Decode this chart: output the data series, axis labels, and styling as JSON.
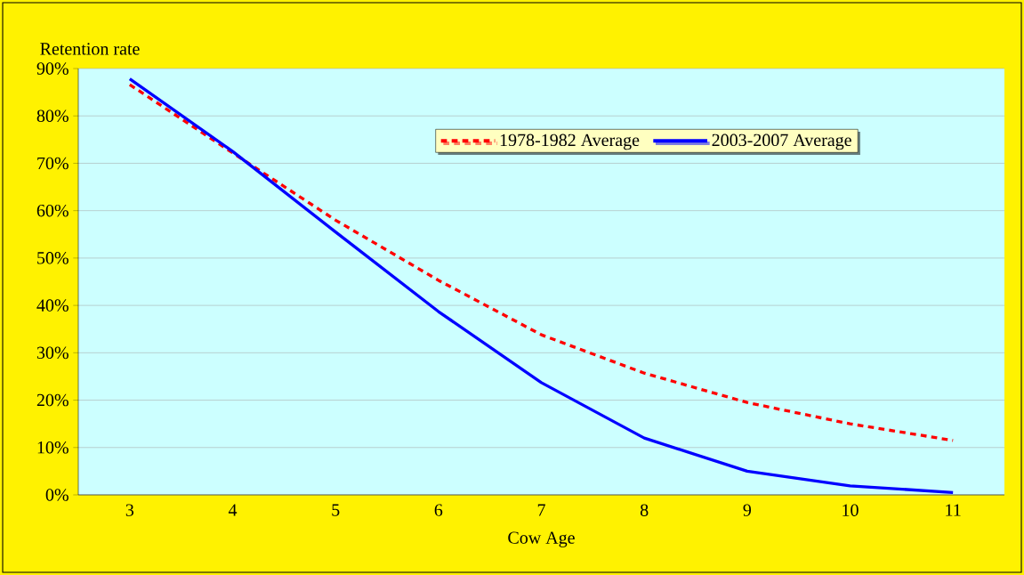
{
  "chart_data": {
    "type": "line",
    "xlabel": "Cow Age",
    "ylabel": "Retention rate",
    "categories": [
      "3",
      "4",
      "5",
      "6",
      "7",
      "8",
      "9",
      "10",
      "11"
    ],
    "series": [
      {
        "name": "1978-1982 Average",
        "color": "#ff0000",
        "line_style": "dashed",
        "values": [
          86.6,
          72.2,
          58,
          45.3,
          33.8,
          25.7,
          19.5,
          15,
          11.5
        ]
      },
      {
        "name": "2003-2007 Average",
        "color": "#0000ff",
        "line_style": "solid",
        "values": [
          87.8,
          72.5,
          55.5,
          38.7,
          23.7,
          12,
          5,
          1.9,
          0.5
        ]
      }
    ],
    "ylim": [
      0,
      90
    ],
    "yticks": [
      {
        "value": 0,
        "label": "0%"
      },
      {
        "value": 10,
        "label": "10%"
      },
      {
        "value": 20,
        "label": "20%"
      },
      {
        "value": 30,
        "label": "30%"
      },
      {
        "value": 40,
        "label": "40%"
      },
      {
        "value": 50,
        "label": "50%"
      },
      {
        "value": 60,
        "label": "60%"
      },
      {
        "value": 70,
        "label": "70%"
      },
      {
        "value": 80,
        "label": "80%"
      },
      {
        "value": 90,
        "label": "90%"
      }
    ],
    "grid": "y",
    "legend": "top right",
    "marker": "none"
  }
}
